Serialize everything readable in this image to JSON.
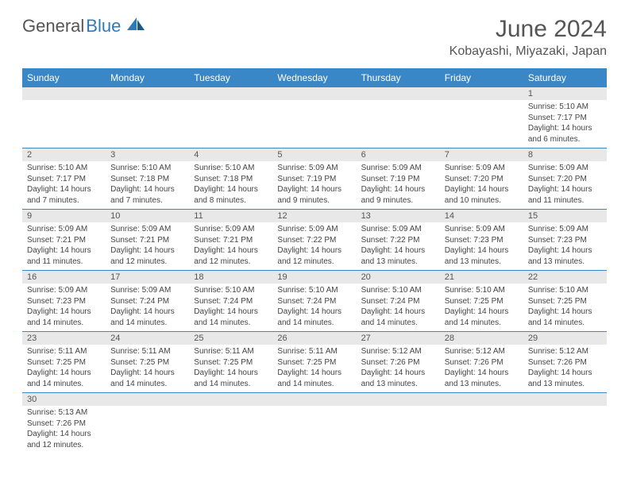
{
  "brand": {
    "part1": "General",
    "part2": "Blue"
  },
  "title": "June 2024",
  "location": "Kobayashi, Miyazaki, Japan",
  "colors": {
    "header_bg": "#3a87c8",
    "header_text": "#ffffff",
    "daynum_bg": "#e8e8e8",
    "text": "#555555",
    "rule": "#3a87c8"
  },
  "weekdays": [
    "Sunday",
    "Monday",
    "Tuesday",
    "Wednesday",
    "Thursday",
    "Friday",
    "Saturday"
  ],
  "weeks": [
    {
      "nums": [
        "",
        "",
        "",
        "",
        "",
        "",
        "1"
      ],
      "cells": [
        null,
        null,
        null,
        null,
        null,
        null,
        {
          "sunrise": "Sunrise: 5:10 AM",
          "sunset": "Sunset: 7:17 PM",
          "d1": "Daylight: 14 hours",
          "d2": "and 6 minutes."
        }
      ]
    },
    {
      "nums": [
        "2",
        "3",
        "4",
        "5",
        "6",
        "7",
        "8"
      ],
      "cells": [
        {
          "sunrise": "Sunrise: 5:10 AM",
          "sunset": "Sunset: 7:17 PM",
          "d1": "Daylight: 14 hours",
          "d2": "and 7 minutes."
        },
        {
          "sunrise": "Sunrise: 5:10 AM",
          "sunset": "Sunset: 7:18 PM",
          "d1": "Daylight: 14 hours",
          "d2": "and 7 minutes."
        },
        {
          "sunrise": "Sunrise: 5:10 AM",
          "sunset": "Sunset: 7:18 PM",
          "d1": "Daylight: 14 hours",
          "d2": "and 8 minutes."
        },
        {
          "sunrise": "Sunrise: 5:09 AM",
          "sunset": "Sunset: 7:19 PM",
          "d1": "Daylight: 14 hours",
          "d2": "and 9 minutes."
        },
        {
          "sunrise": "Sunrise: 5:09 AM",
          "sunset": "Sunset: 7:19 PM",
          "d1": "Daylight: 14 hours",
          "d2": "and 9 minutes."
        },
        {
          "sunrise": "Sunrise: 5:09 AM",
          "sunset": "Sunset: 7:20 PM",
          "d1": "Daylight: 14 hours",
          "d2": "and 10 minutes."
        },
        {
          "sunrise": "Sunrise: 5:09 AM",
          "sunset": "Sunset: 7:20 PM",
          "d1": "Daylight: 14 hours",
          "d2": "and 11 minutes."
        }
      ]
    },
    {
      "nums": [
        "9",
        "10",
        "11",
        "12",
        "13",
        "14",
        "15"
      ],
      "cells": [
        {
          "sunrise": "Sunrise: 5:09 AM",
          "sunset": "Sunset: 7:21 PM",
          "d1": "Daylight: 14 hours",
          "d2": "and 11 minutes."
        },
        {
          "sunrise": "Sunrise: 5:09 AM",
          "sunset": "Sunset: 7:21 PM",
          "d1": "Daylight: 14 hours",
          "d2": "and 12 minutes."
        },
        {
          "sunrise": "Sunrise: 5:09 AM",
          "sunset": "Sunset: 7:21 PM",
          "d1": "Daylight: 14 hours",
          "d2": "and 12 minutes."
        },
        {
          "sunrise": "Sunrise: 5:09 AM",
          "sunset": "Sunset: 7:22 PM",
          "d1": "Daylight: 14 hours",
          "d2": "and 12 minutes."
        },
        {
          "sunrise": "Sunrise: 5:09 AM",
          "sunset": "Sunset: 7:22 PM",
          "d1": "Daylight: 14 hours",
          "d2": "and 13 minutes."
        },
        {
          "sunrise": "Sunrise: 5:09 AM",
          "sunset": "Sunset: 7:23 PM",
          "d1": "Daylight: 14 hours",
          "d2": "and 13 minutes."
        },
        {
          "sunrise": "Sunrise: 5:09 AM",
          "sunset": "Sunset: 7:23 PM",
          "d1": "Daylight: 14 hours",
          "d2": "and 13 minutes."
        }
      ]
    },
    {
      "nums": [
        "16",
        "17",
        "18",
        "19",
        "20",
        "21",
        "22"
      ],
      "cells": [
        {
          "sunrise": "Sunrise: 5:09 AM",
          "sunset": "Sunset: 7:23 PM",
          "d1": "Daylight: 14 hours",
          "d2": "and 14 minutes."
        },
        {
          "sunrise": "Sunrise: 5:09 AM",
          "sunset": "Sunset: 7:24 PM",
          "d1": "Daylight: 14 hours",
          "d2": "and 14 minutes."
        },
        {
          "sunrise": "Sunrise: 5:10 AM",
          "sunset": "Sunset: 7:24 PM",
          "d1": "Daylight: 14 hours",
          "d2": "and 14 minutes."
        },
        {
          "sunrise": "Sunrise: 5:10 AM",
          "sunset": "Sunset: 7:24 PM",
          "d1": "Daylight: 14 hours",
          "d2": "and 14 minutes."
        },
        {
          "sunrise": "Sunrise: 5:10 AM",
          "sunset": "Sunset: 7:24 PM",
          "d1": "Daylight: 14 hours",
          "d2": "and 14 minutes."
        },
        {
          "sunrise": "Sunrise: 5:10 AM",
          "sunset": "Sunset: 7:25 PM",
          "d1": "Daylight: 14 hours",
          "d2": "and 14 minutes."
        },
        {
          "sunrise": "Sunrise: 5:10 AM",
          "sunset": "Sunset: 7:25 PM",
          "d1": "Daylight: 14 hours",
          "d2": "and 14 minutes."
        }
      ]
    },
    {
      "nums": [
        "23",
        "24",
        "25",
        "26",
        "27",
        "28",
        "29"
      ],
      "cells": [
        {
          "sunrise": "Sunrise: 5:11 AM",
          "sunset": "Sunset: 7:25 PM",
          "d1": "Daylight: 14 hours",
          "d2": "and 14 minutes."
        },
        {
          "sunrise": "Sunrise: 5:11 AM",
          "sunset": "Sunset: 7:25 PM",
          "d1": "Daylight: 14 hours",
          "d2": "and 14 minutes."
        },
        {
          "sunrise": "Sunrise: 5:11 AM",
          "sunset": "Sunset: 7:25 PM",
          "d1": "Daylight: 14 hours",
          "d2": "and 14 minutes."
        },
        {
          "sunrise": "Sunrise: 5:11 AM",
          "sunset": "Sunset: 7:25 PM",
          "d1": "Daylight: 14 hours",
          "d2": "and 14 minutes."
        },
        {
          "sunrise": "Sunrise: 5:12 AM",
          "sunset": "Sunset: 7:26 PM",
          "d1": "Daylight: 14 hours",
          "d2": "and 13 minutes."
        },
        {
          "sunrise": "Sunrise: 5:12 AM",
          "sunset": "Sunset: 7:26 PM",
          "d1": "Daylight: 14 hours",
          "d2": "and 13 minutes."
        },
        {
          "sunrise": "Sunrise: 5:12 AM",
          "sunset": "Sunset: 7:26 PM",
          "d1": "Daylight: 14 hours",
          "d2": "and 13 minutes."
        }
      ]
    },
    {
      "nums": [
        "30",
        "",
        "",
        "",
        "",
        "",
        ""
      ],
      "cells": [
        {
          "sunrise": "Sunrise: 5:13 AM",
          "sunset": "Sunset: 7:26 PM",
          "d1": "Daylight: 14 hours",
          "d2": "and 12 minutes."
        },
        null,
        null,
        null,
        null,
        null,
        null
      ]
    }
  ]
}
